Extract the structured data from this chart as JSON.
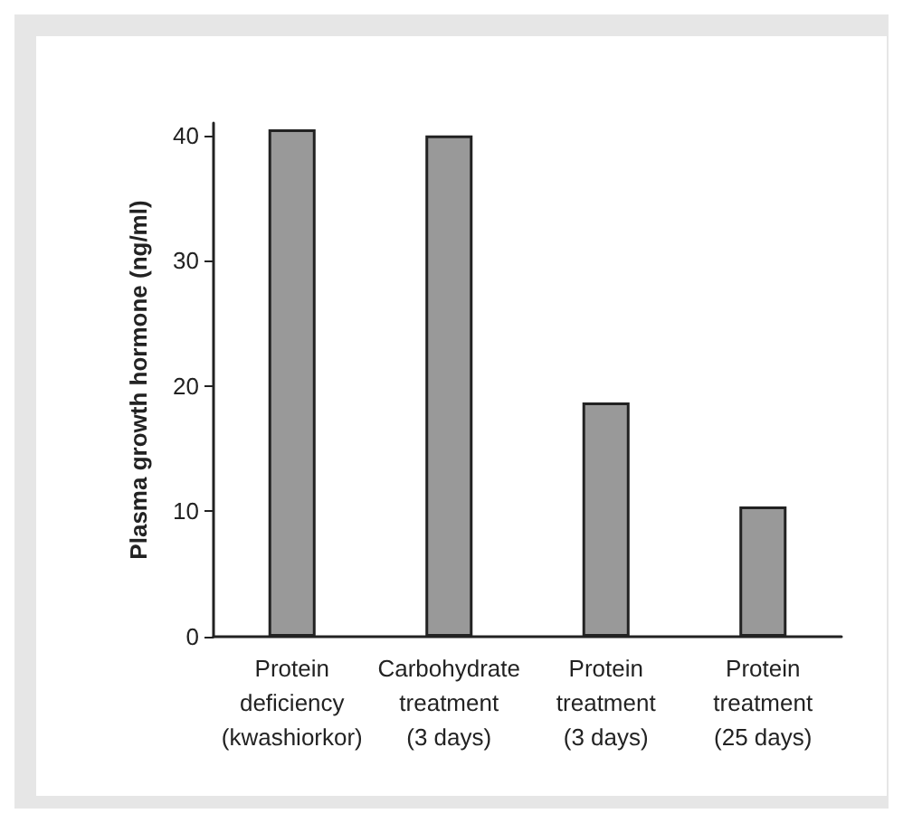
{
  "chart_data": {
    "type": "bar",
    "ylabel": "Plasma growth hormone (ng/ml)",
    "categories": [
      "Protein\ndeficiency\n(kwashiorkor)",
      "Carbohydrate\ntreatment\n(3 days)",
      "Protein\ntreatment\n(3 days)",
      "Protein\ntreatment\n(25 days)"
    ],
    "values": [
      40.5,
      40,
      18.7,
      10.4
    ],
    "color": "#999999",
    "ylim": [
      0,
      41
    ],
    "yticks": [
      0,
      10,
      20,
      30,
      40
    ],
    "grid": false
  }
}
